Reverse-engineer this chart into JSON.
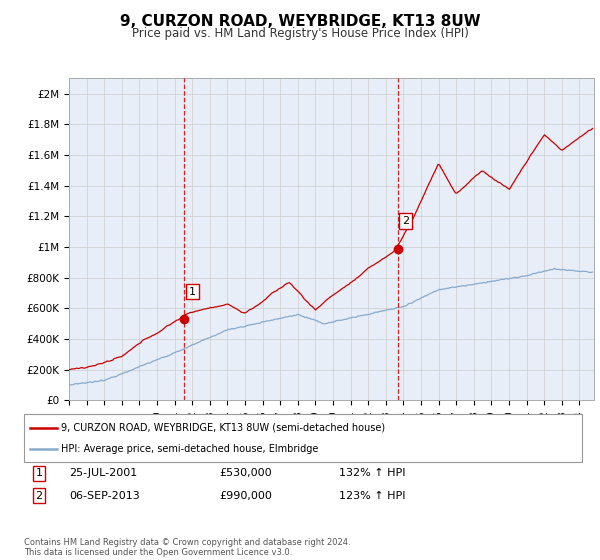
{
  "title": "9, CURZON ROAD, WEYBRIDGE, KT13 8UW",
  "subtitle": "Price paid vs. HM Land Registry's House Price Index (HPI)",
  "title_fontsize": 11,
  "subtitle_fontsize": 8.5,
  "ylabel_ticks": [
    "£0",
    "£200K",
    "£400K",
    "£600K",
    "£800K",
    "£1M",
    "£1.2M",
    "£1.4M",
    "£1.6M",
    "£1.8M",
    "£2M"
  ],
  "ytick_values": [
    0,
    200000,
    400000,
    600000,
    800000,
    1000000,
    1200000,
    1400000,
    1600000,
    1800000,
    2000000
  ],
  "ylim": [
    0,
    2100000
  ],
  "xlim_start": 1995.0,
  "xlim_end": 2024.83,
  "sale1_x": 2001.56,
  "sale1_y": 530000,
  "sale1_label": "1",
  "sale1_date": "25-JUL-2001",
  "sale1_price": "£530,000",
  "sale1_hpi": "132% ↑ HPI",
  "sale2_x": 2013.68,
  "sale2_y": 990000,
  "sale2_label": "2",
  "sale2_date": "06-SEP-2013",
  "sale2_price": "£990,000",
  "sale2_hpi": "123% ↑ HPI",
  "house_color": "#cc0000",
  "hpi_color": "#88aacc",
  "vline_color": "#cc0000",
  "legend_house": "9, CURZON ROAD, WEYBRIDGE, KT13 8UW (semi-detached house)",
  "legend_hpi": "HPI: Average price, semi-detached house, Elmbridge",
  "footer": "Contains HM Land Registry data © Crown copyright and database right 2024.\nThis data is licensed under the Open Government Licence v3.0.",
  "background_color": "#e8eef8",
  "plot_bg": "#ffffff"
}
